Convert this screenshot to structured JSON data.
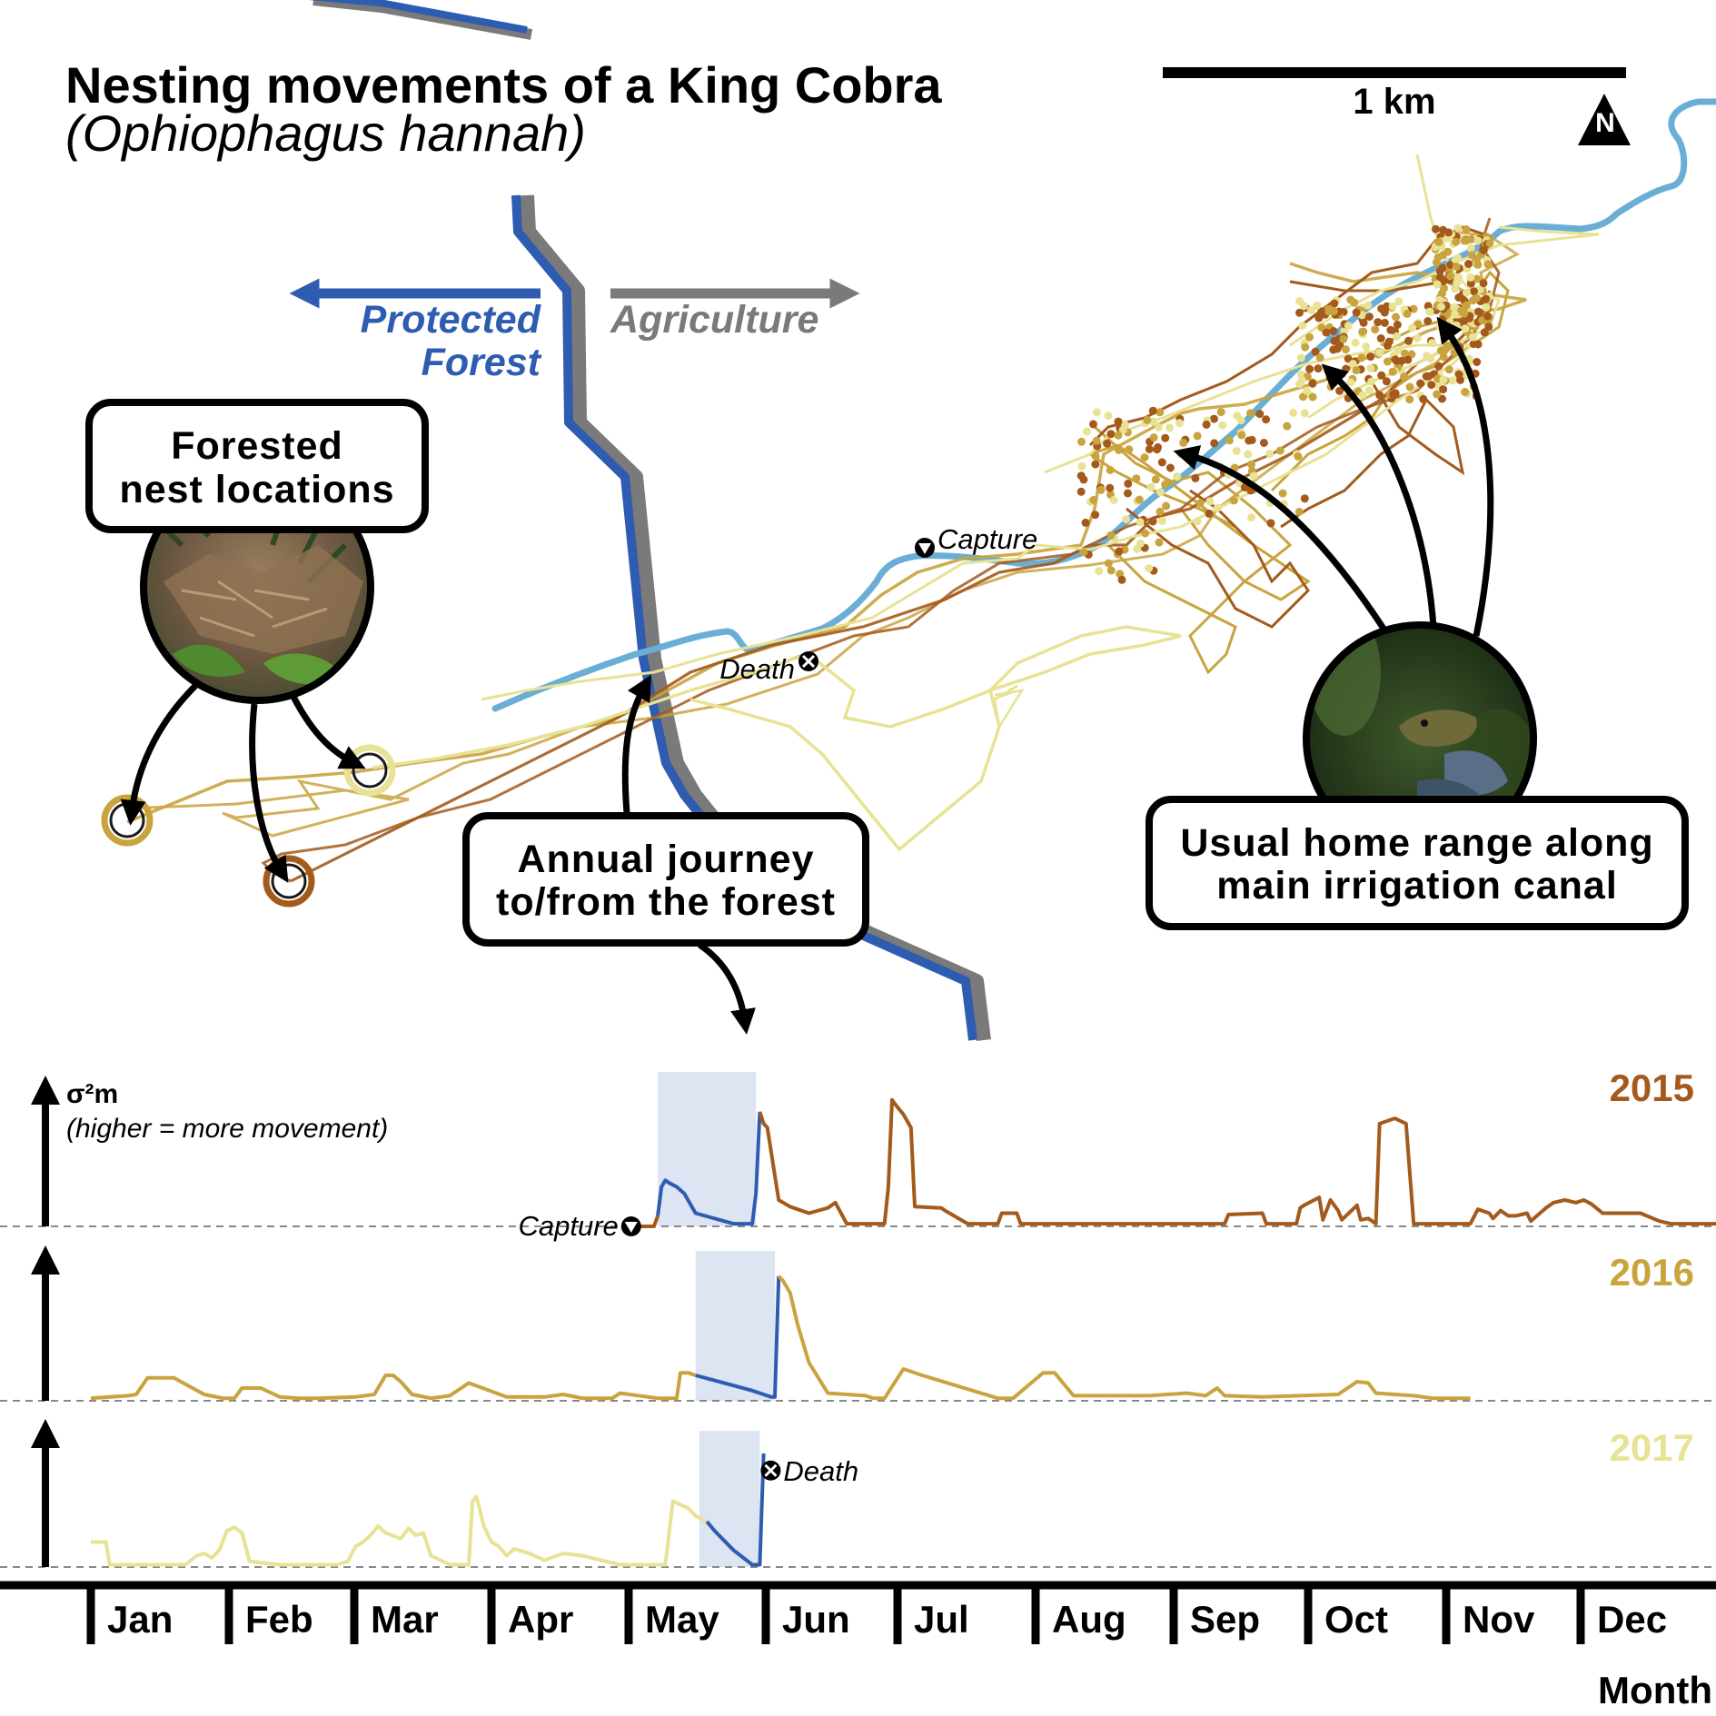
{
  "header": {
    "title": "Nesting movements of a King Cobra",
    "subtitle": "(Ophiophagus hannah)"
  },
  "map": {
    "scale_label": "1 km",
    "north_label": "N",
    "zones": {
      "protected_line1": "Protected",
      "protected_line2": "Forest",
      "agriculture": "Agriculture"
    },
    "callouts": {
      "nest_line1": "Forested",
      "nest_line2": "nest locations",
      "journey_line1": "Annual journey",
      "journey_line2": "to/from the forest",
      "home_line1": "Usual home range along",
      "home_line2": "main irrigation canal"
    },
    "events": {
      "capture": "Capture",
      "death": "Death"
    },
    "icons": [
      "north-arrow-icon",
      "capture-marker-icon",
      "death-marker-icon",
      "nest-photo",
      "cobra-photo"
    ]
  },
  "colors": {
    "y2015": "#A35A1B",
    "y2016": "#C9A33E",
    "y2017": "#E8E294",
    "nesting_trace": "#2E5CB0",
    "nesting_band": "#DDE4F2",
    "forest_boundary": "#2E5CB0",
    "agriculture_boundary": "#7A7A7A",
    "canal": "#6AAED6"
  },
  "chart_data": {
    "type": "line",
    "title": "",
    "xlabel": "Month",
    "ylabel": "σ²m",
    "ylabel_note": "(higher = more movement)",
    "x_ticks": [
      "Jan",
      "Feb",
      "Mar",
      "Apr",
      "May",
      "Jun",
      "Jul",
      "Aug",
      "Sep",
      "Oct",
      "Nov",
      "Dec"
    ],
    "x_unit": "day of year",
    "ylim": [
      0,
      1
    ],
    "series": [
      {
        "name": "2015",
        "nesting_window": [
          150,
          176
        ],
        "capture_day": 142,
        "x": [
          142,
          149,
          150,
          151,
          152,
          153,
          155,
          157,
          160,
          170,
          175,
          176,
          177,
          178,
          179,
          182,
          185,
          190,
          195,
          197,
          200,
          206,
          210,
          211,
          212,
          213,
          215,
          217,
          218,
          225,
          226,
          232,
          235,
          240,
          241,
          245,
          246,
          252,
          260,
          290,
          300,
          301,
          310,
          311,
          319,
          320,
          321,
          325,
          326,
          328,
          330,
          331,
          335,
          336,
          338,
          340,
          341,
          345,
          348,
          350,
          351,
          352,
          353,
          354,
          355,
          365,
          367,
          370,
          371,
          373,
          375,
          377,
          380,
          381,
          385,
          387,
          390,
          393,
          395,
          397,
          400,
          410,
          415,
          418,
          430
        ],
        "y": [
          0,
          0,
          0.08,
          0.3,
          0.35,
          0.33,
          0.3,
          0.25,
          0.1,
          0.02,
          0.02,
          0.25,
          0.87,
          0.78,
          0.75,
          0.2,
          0.15,
          0.1,
          0.14,
          0.18,
          0.02,
          0.02,
          0.02,
          0.3,
          0.96,
          0.92,
          0.85,
          0.75,
          0.15,
          0.14,
          0.12,
          0.02,
          0.02,
          0.02,
          0.1,
          0.1,
          0.02,
          0.02,
          0.02,
          0.02,
          0.02,
          0.09,
          0.1,
          0.02,
          0.02,
          0.14,
          0.16,
          0.22,
          0.05,
          0.2,
          0.12,
          0.05,
          0.16,
          0.05,
          0.06,
          0.02,
          0.78,
          0.82,
          0.78,
          0.02,
          0.02,
          0.02,
          0.02,
          0.02,
          0.02,
          0.02,
          0.13,
          0.1,
          0.06,
          0.12,
          0.08,
          0.08,
          0.1,
          0.04,
          0.14,
          0.18,
          0.2,
          0.18,
          0.2,
          0.17,
          0.1,
          0.1,
          0.04,
          0.02,
          0.02
        ]
      },
      {
        "name": "2016",
        "nesting_window": [
          160,
          181
        ],
        "x": [
          0,
          5,
          10,
          12,
          15,
          18,
          22,
          30,
          35,
          38,
          40,
          45,
          50,
          55,
          60,
          70,
          75,
          78,
          80,
          82,
          85,
          90,
          95,
          100,
          110,
          115,
          120,
          125,
          130,
          135,
          138,
          140,
          150,
          155,
          156,
          158,
          160,
          165,
          170,
          175,
          178,
          180,
          181,
          182,
          183,
          185,
          187,
          190,
          195,
          205,
          207,
          210,
          215,
          220,
          240,
          244,
          252,
          255,
          260,
          280,
          290,
          295,
          298,
          300,
          310,
          320,
          330,
          335,
          338,
          340,
          350,
          355,
          360,
          365
        ],
        "y": [
          0.02,
          0.03,
          0.04,
          0.05,
          0.18,
          0.18,
          0.18,
          0.05,
          0.02,
          0.02,
          0.1,
          0.1,
          0.03,
          0.02,
          0.02,
          0.03,
          0.05,
          0.2,
          0.2,
          0.15,
          0.05,
          0.02,
          0.04,
          0.14,
          0.03,
          0.03,
          0.03,
          0.05,
          0.02,
          0.02,
          0.02,
          0.06,
          0.02,
          0.02,
          0.22,
          0.22,
          0.2,
          0.16,
          0.12,
          0.08,
          0.05,
          0.03,
          0.03,
          0.98,
          0.95,
          0.85,
          0.6,
          0.3,
          0.06,
          0.04,
          0.02,
          0.02,
          0.25,
          0.2,
          0.02,
          0.02,
          0.22,
          0.22,
          0.04,
          0.04,
          0.06,
          0.04,
          0.1,
          0.04,
          0.03,
          0.04,
          0.05,
          0.15,
          0.14,
          0.06,
          0.04,
          0.02,
          0.02,
          0.02
        ]
      },
      {
        "name": "2017",
        "nesting_window": [
          161,
          177
        ],
        "death_day": 177,
        "x": [
          0,
          4,
          5,
          10,
          20,
          25,
          28,
          30,
          32,
          34,
          36,
          38,
          40,
          42,
          50,
          60,
          65,
          68,
          70,
          72,
          74,
          76,
          78,
          82,
          84,
          86,
          88,
          90,
          95,
          98,
          100,
          101,
          102,
          104,
          106,
          108,
          110,
          112,
          116,
          120,
          125,
          130,
          140,
          150,
          152,
          154,
          156,
          158,
          160,
          163,
          165,
          170,
          175,
          177,
          178
        ],
        "y": [
          0.22,
          0.22,
          0.02,
          0.02,
          0.02,
          0.02,
          0.1,
          0.12,
          0.08,
          0.15,
          0.32,
          0.35,
          0.3,
          0.05,
          0.02,
          0.02,
          0.02,
          0.05,
          0.18,
          0.22,
          0.28,
          0.36,
          0.3,
          0.25,
          0.34,
          0.28,
          0.3,
          0.1,
          0.02,
          0.02,
          0.02,
          0.58,
          0.62,
          0.36,
          0.22,
          0.18,
          0.1,
          0.16,
          0.12,
          0.06,
          0.12,
          0.1,
          0.02,
          0.02,
          0.02,
          0.58,
          0.55,
          0.52,
          0.45,
          0.4,
          0.32,
          0.15,
          0.02,
          0.02,
          1.0
        ]
      }
    ]
  }
}
